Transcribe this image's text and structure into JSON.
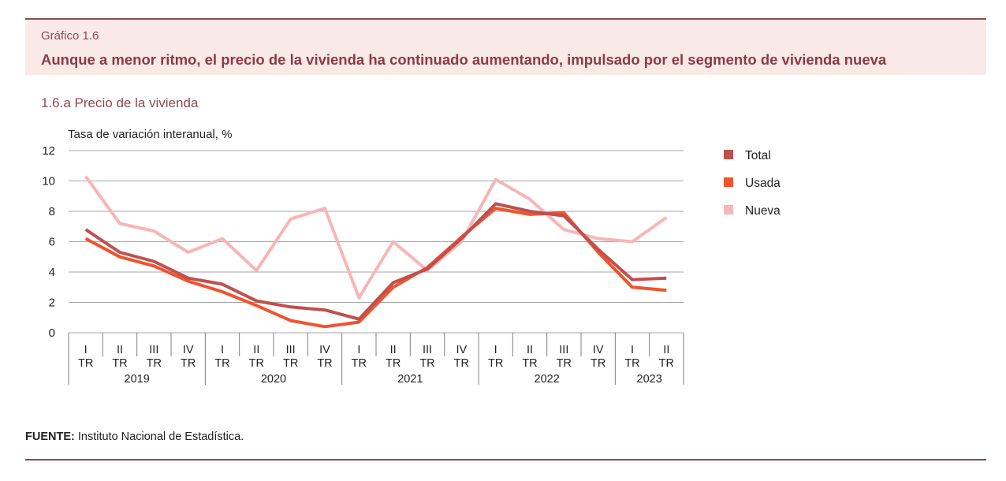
{
  "header": {
    "fig_number": "Gráfico 1.6",
    "title": "Aunque a menor ritmo, el precio de la vivienda ha continuado aumentando, impulsado por el segmento de vivienda nueva"
  },
  "subtitle": "1.6.a  Precio de la vivienda",
  "source": {
    "label": "FUENTE:",
    "text": "Instituto Nacional de Estadística."
  },
  "colors": {
    "total": "#c0504d",
    "usada": "#f0532e",
    "nueva": "#f7b6b6",
    "grid": "#a6a6a6",
    "accent": "#8c4a52"
  },
  "chart_data": {
    "type": "line",
    "ylabel": "Tasa de variación interanual, %",
    "ylim": [
      0,
      12
    ],
    "yticks": [
      0,
      2,
      4,
      6,
      8,
      10,
      12
    ],
    "grid": true,
    "legend_position": "right",
    "quarters": [
      "I",
      "II",
      "III",
      "IV",
      "I",
      "II",
      "III",
      "IV",
      "I",
      "II",
      "III",
      "IV",
      "I",
      "II",
      "III",
      "IV",
      "I",
      "II"
    ],
    "quarter_suffix": "TR",
    "years": [
      {
        "label": "2019",
        "count": 4
      },
      {
        "label": "2020",
        "count": 4
      },
      {
        "label": "2021",
        "count": 4
      },
      {
        "label": "2022",
        "count": 4
      },
      {
        "label": "2023",
        "count": 2
      }
    ],
    "series": [
      {
        "name": "Total",
        "color_key": "total",
        "values": [
          6.8,
          5.3,
          4.7,
          3.6,
          3.2,
          2.1,
          1.7,
          1.5,
          0.9,
          3.3,
          4.2,
          6.2,
          8.5,
          8.0,
          7.7,
          5.5,
          3.5,
          3.6
        ]
      },
      {
        "name": "Usada",
        "color_key": "usada",
        "values": [
          6.2,
          5.0,
          4.4,
          3.4,
          2.7,
          1.8,
          0.8,
          0.4,
          0.7,
          3.0,
          4.3,
          6.3,
          8.2,
          7.8,
          7.9,
          5.3,
          3.0,
          2.8
        ]
      },
      {
        "name": "Nueva",
        "color_key": "nueva",
        "values": [
          10.3,
          7.2,
          6.7,
          5.3,
          6.2,
          4.1,
          7.5,
          8.2,
          2.3,
          6.0,
          4.1,
          6.0,
          10.1,
          8.8,
          6.8,
          6.2,
          6.0,
          7.6
        ]
      }
    ]
  }
}
